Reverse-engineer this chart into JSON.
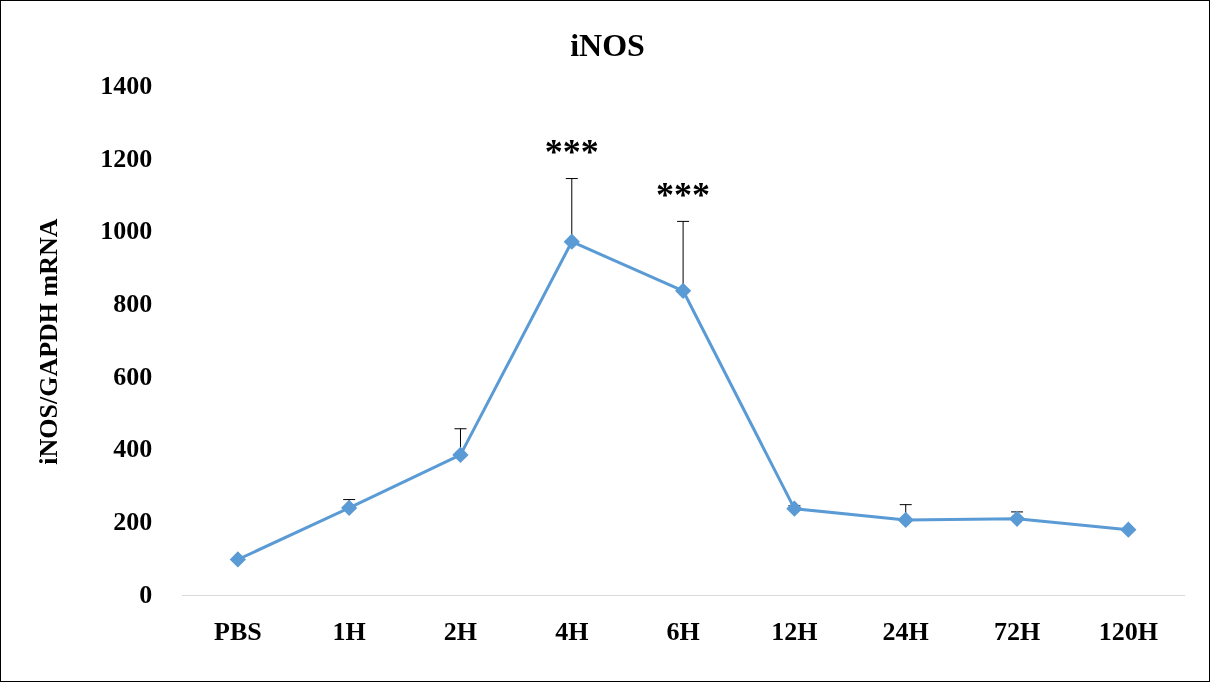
{
  "chart_data": {
    "type": "line",
    "title": "iNOS",
    "ylabel": "iNOS/GAPDH mRNA",
    "categories": [
      "PBS",
      "1H",
      "2H",
      "4H",
      "6H",
      "12H",
      "24H",
      "72H",
      "120H"
    ],
    "series": [
      {
        "color": "#5b9bd5",
        "values": [
          100,
          242,
          388,
          975,
          840,
          240,
          209,
          212,
          182
        ],
        "errors": [
          null,
          [
            242,
            265
          ],
          [
            388,
            460
          ],
          [
            975,
            1149
          ],
          [
            840,
            1031
          ],
          [
            240,
            248
          ],
          [
            209,
            251
          ],
          [
            212,
            231
          ],
          null
        ]
      }
    ],
    "ylim": [
      0,
      1400
    ],
    "yticks": [
      0,
      200,
      400,
      600,
      800,
      1000,
      1200,
      1400
    ],
    "grid": false,
    "legend": false,
    "marker": "diamond",
    "line_style": "solid",
    "annotations": [
      "***",
      "***"
    ]
  }
}
